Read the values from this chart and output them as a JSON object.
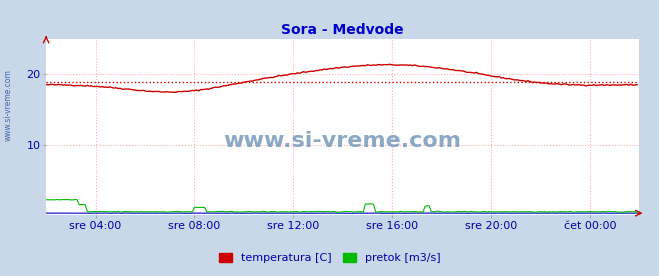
{
  "title": "Sora - Medvode",
  "title_color": "#0000cc",
  "bg_color": "#c8d8e8",
  "plot_bg_color": "#ffffff",
  "watermark_text": "www.si-vreme.com",
  "watermark_color": "#7799bb",
  "ylim": [
    0,
    25
  ],
  "yticks": [
    10,
    20
  ],
  "xlabel_times": [
    "sre 04:00",
    "sre 08:00",
    "sre 12:00",
    "sre 16:00",
    "sre 20:00",
    "čet 00:00"
  ],
  "grid_color": "#ffaaaa",
  "grid_style": ":",
  "avg_line_value": 18.8,
  "avg_line_color": "#cc0000",
  "avg_line_style": ":",
  "temp_color": "#cc0000",
  "flow_color": "#00bb00",
  "height_color": "#0000cc",
  "legend_temp": "temperatura [C]",
  "legend_flow": "pretok [m3/s]",
  "x_label_color": "#0000aa",
  "tick_label_color": "#0000aa",
  "left_label": "www.si-vreme.com",
  "left_label_color": "#4466aa",
  "n_points": 288,
  "tick_positions": [
    24,
    72,
    120,
    168,
    216,
    264
  ]
}
